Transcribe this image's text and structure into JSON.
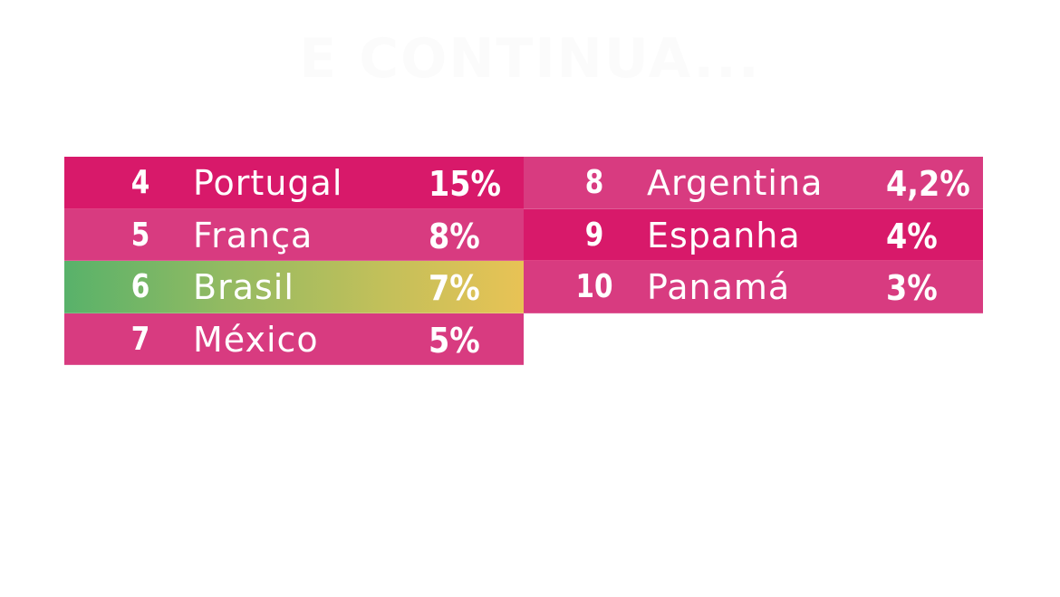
{
  "title": "E CONTINUA...",
  "left_column": [
    {
      "rank": "4",
      "country": "Portugal",
      "percent": "15%"
    },
    {
      "rank": "5",
      "country": "França",
      "percent": "8%"
    },
    {
      "rank": "6",
      "country": "Brasil",
      "percent": "7%"
    },
    {
      "rank": "7",
      "country": "México",
      "percent": "5%"
    }
  ],
  "right_column": [
    {
      "rank": "8",
      "country": "Argentina",
      "percent": "4,2%"
    },
    {
      "rank": "9",
      "country": "Espanha",
      "percent": "4%"
    },
    {
      "rank": "10",
      "country": "Panamá",
      "percent": "3%"
    }
  ],
  "colors": {
    "row_dark": "#d8196a",
    "row_light": "#d83b80",
    "highlight_start": "#58b26a",
    "highlight_end": "#e8c255",
    "text": "#ffffff"
  }
}
